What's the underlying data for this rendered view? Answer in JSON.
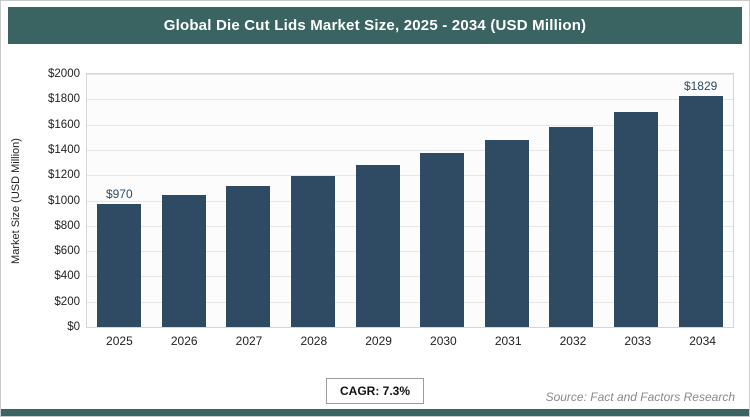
{
  "header": {
    "title": "Global Die Cut Lids Market Size, 2025 - 2034 (USD Million)"
  },
  "chart_data": {
    "type": "bar",
    "title": "Global Die Cut Lids Market Size, 2025 - 2034 (USD Million)",
    "categories": [
      "2025",
      "2026",
      "2027",
      "2028",
      "2029",
      "2030",
      "2031",
      "2032",
      "2033",
      "2034"
    ],
    "values": [
      970,
      1040,
      1115,
      1195,
      1280,
      1375,
      1475,
      1585,
      1700,
      1829
    ],
    "xlabel": "",
    "ylabel": "Market Size (USD Million)",
    "ylim": [
      0,
      2000
    ],
    "ytick_step": 200,
    "yticks": [
      "$0",
      "$200",
      "$400",
      "$600",
      "$800",
      "$1000",
      "$1200",
      "$1400",
      "$1600",
      "$1800",
      "$2000"
    ],
    "data_labels": {
      "first": "$970",
      "last": "$1829"
    },
    "grid": true,
    "legend": "none"
  },
  "footer": {
    "cagr_label": "CAGR: 7.3%",
    "source": "Source: Fact and Factors Research"
  },
  "colors": {
    "header_bg": "#3A6461",
    "bar": "#2E4B63",
    "value_label": "#2E4B63",
    "accent_strip": "#3A6461"
  }
}
